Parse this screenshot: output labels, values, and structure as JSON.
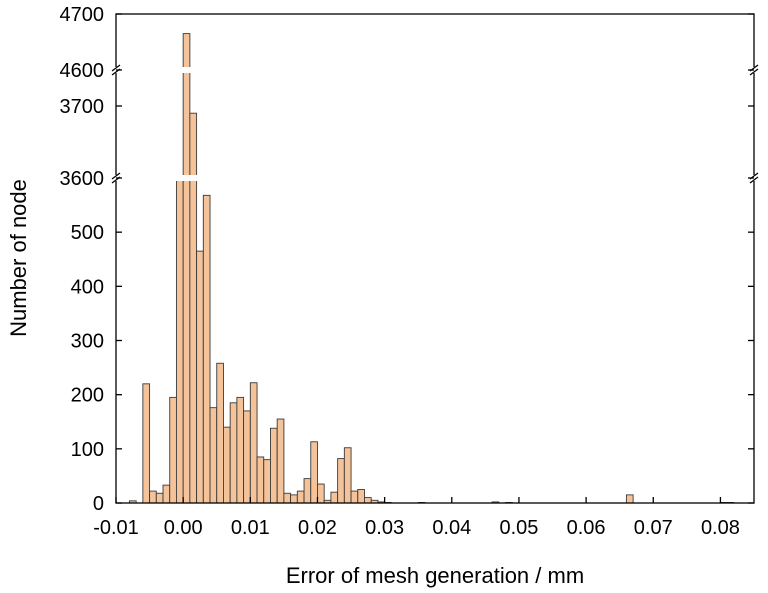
{
  "chart_data": {
    "type": "bar",
    "xlabel": "Error of mesh generation / mm",
    "ylabel": "Number of node",
    "xlim": [
      -0.01,
      0.085
    ],
    "x_ticks": [
      "-0.01",
      "0.00",
      "0.01",
      "0.02",
      "0.03",
      "0.04",
      "0.05",
      "0.06",
      "0.07",
      "0.08"
    ],
    "y_broken_axis": {
      "segments": [
        {
          "range": [
            0,
            600
          ],
          "ticks": [
            "0",
            "100",
            "200",
            "300",
            "400",
            "500"
          ]
        },
        {
          "range": [
            3600,
            3750
          ],
          "ticks": [
            "3600",
            "3700"
          ]
        },
        {
          "range": [
            4600,
            4700
          ],
          "ticks": [
            "4600",
            "4700"
          ]
        }
      ]
    },
    "bin_width": 0.001,
    "bar_color": "#f5c39a",
    "edge_color": "#3a3a3a",
    "grid": false,
    "legend": "none",
    "bins": [
      {
        "x": -0.008,
        "value": 4
      },
      {
        "x": -0.006,
        "value": 220
      },
      {
        "x": -0.005,
        "value": 22
      },
      {
        "x": -0.004,
        "value": 18
      },
      {
        "x": -0.003,
        "value": 33
      },
      {
        "x": -0.002,
        "value": 195
      },
      {
        "x": -0.001,
        "value": 3600
      },
      {
        "x": 0.0,
        "value": 4665
      },
      {
        "x": 0.001,
        "value": 3690
      },
      {
        "x": 0.002,
        "value": 465
      },
      {
        "x": 0.003,
        "value": 568
      },
      {
        "x": 0.004,
        "value": 176
      },
      {
        "x": 0.005,
        "value": 258
      },
      {
        "x": 0.006,
        "value": 140
      },
      {
        "x": 0.007,
        "value": 185
      },
      {
        "x": 0.008,
        "value": 195
      },
      {
        "x": 0.009,
        "value": 170
      },
      {
        "x": 0.01,
        "value": 222
      },
      {
        "x": 0.011,
        "value": 85
      },
      {
        "x": 0.012,
        "value": 80
      },
      {
        "x": 0.013,
        "value": 138
      },
      {
        "x": 0.014,
        "value": 155
      },
      {
        "x": 0.015,
        "value": 18
      },
      {
        "x": 0.016,
        "value": 15
      },
      {
        "x": 0.017,
        "value": 22
      },
      {
        "x": 0.018,
        "value": 45
      },
      {
        "x": 0.019,
        "value": 113
      },
      {
        "x": 0.02,
        "value": 35
      },
      {
        "x": 0.021,
        "value": 5
      },
      {
        "x": 0.022,
        "value": 20
      },
      {
        "x": 0.023,
        "value": 82
      },
      {
        "x": 0.024,
        "value": 102
      },
      {
        "x": 0.025,
        "value": 22
      },
      {
        "x": 0.026,
        "value": 25
      },
      {
        "x": 0.027,
        "value": 10
      },
      {
        "x": 0.028,
        "value": 5
      },
      {
        "x": 0.029,
        "value": 2
      },
      {
        "x": 0.03,
        "value": 1
      },
      {
        "x": 0.035,
        "value": 1
      },
      {
        "x": 0.046,
        "value": 2
      },
      {
        "x": 0.048,
        "value": 1
      },
      {
        "x": 0.066,
        "value": 15
      },
      {
        "x": 0.08,
        "value": 1
      },
      {
        "x": 0.081,
        "value": 1
      }
    ]
  }
}
